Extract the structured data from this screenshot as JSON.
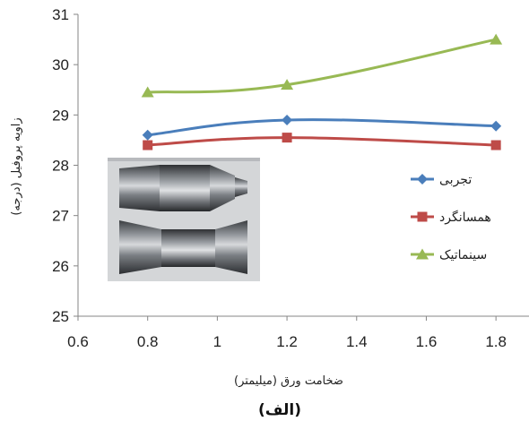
{
  "chart_data": {
    "type": "line",
    "x": [
      0.8,
      1.2,
      1.8
    ],
    "series": [
      {
        "name": "تجربی",
        "values": [
          28.6,
          28.9,
          28.78
        ],
        "color": "#4a7ebb",
        "marker": "diamond"
      },
      {
        "name": "همسانگرد",
        "values": [
          28.4,
          28.55,
          28.4
        ],
        "color": "#be4b48",
        "marker": "square"
      },
      {
        "name": "سینماتیک",
        "values": [
          29.45,
          29.6,
          30.5
        ],
        "color": "#98b954",
        "marker": "triangle"
      }
    ],
    "xlim": [
      0.6,
      1.9
    ],
    "ylim": [
      25,
      31
    ],
    "xticks": [
      "0.6",
      "0.8",
      "1",
      "1.2",
      "1.4",
      "1.6",
      "1.8"
    ],
    "yticks": [
      "25",
      "26",
      "27",
      "28",
      "29",
      "30",
      "31"
    ],
    "xlabel": "ضخامت ورق (میلیمتر)",
    "ylabel": "زاویه پروفیل (درجه)",
    "grid": false,
    "legend_position": "right",
    "axis_color": "#868686"
  },
  "caption": "(الف)",
  "inset_photo": "photo-of-machined-metal-part"
}
